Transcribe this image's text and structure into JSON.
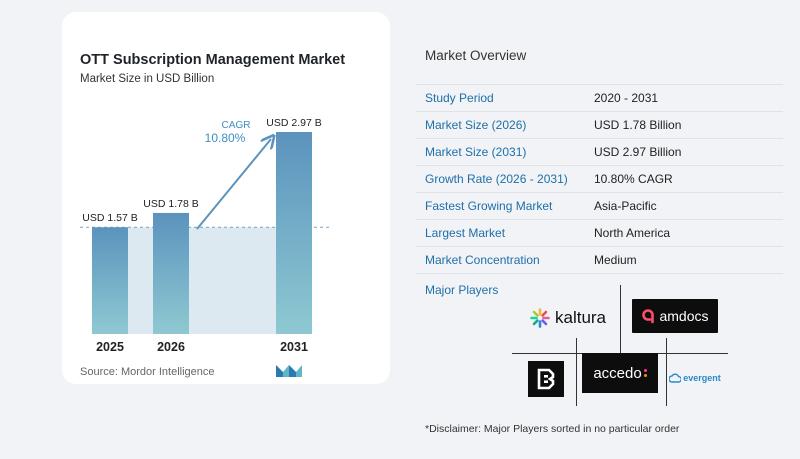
{
  "chart_data": {
    "type": "bar",
    "title": "OTT Subscription Management Market",
    "subtitle": "Market Size in USD Billion",
    "categories": [
      "2025",
      "2026",
      "2031"
    ],
    "values": [
      1.57,
      1.78,
      2.97
    ],
    "value_labels": [
      "USD 1.57 B",
      "USD 1.78 B",
      "USD 2.97 B"
    ],
    "ylim": [
      0,
      2.97
    ],
    "cagr_label": "CAGR",
    "cagr_value": "10.80%",
    "source": "Source:  Mordor Intelligence",
    "colors": {
      "bar_top": "#5b93bd",
      "bar_bottom": "#8ec9d2",
      "shade": "#dde9f1",
      "arrow": "#5b93bd",
      "cagr_text": "#3b8fc4"
    }
  },
  "overview": {
    "title": "Market Overview",
    "rows": [
      {
        "key": "Study Period",
        "value": "2020 - 2031"
      },
      {
        "key": "Market Size (2026)",
        "value": "USD 1.78 Billion"
      },
      {
        "key": "Market Size (2031)",
        "value": "USD 2.97 Billion"
      },
      {
        "key": "Growth Rate (2026 - 2031)",
        "value": "10.80% CAGR"
      },
      {
        "key": "Fastest Growing Market",
        "value": "Asia-Pacific"
      },
      {
        "key": "Largest Market",
        "value": "North America"
      },
      {
        "key": "Market Concentration",
        "value": "Medium"
      }
    ],
    "players_title": "Major Players",
    "players": {
      "kaltura": "kaltura",
      "amdocs": "amdocs",
      "accedo": "accedo",
      "evergent": "evergent"
    },
    "disclaimer": "*Disclaimer: Major Players sorted in no particular order"
  }
}
